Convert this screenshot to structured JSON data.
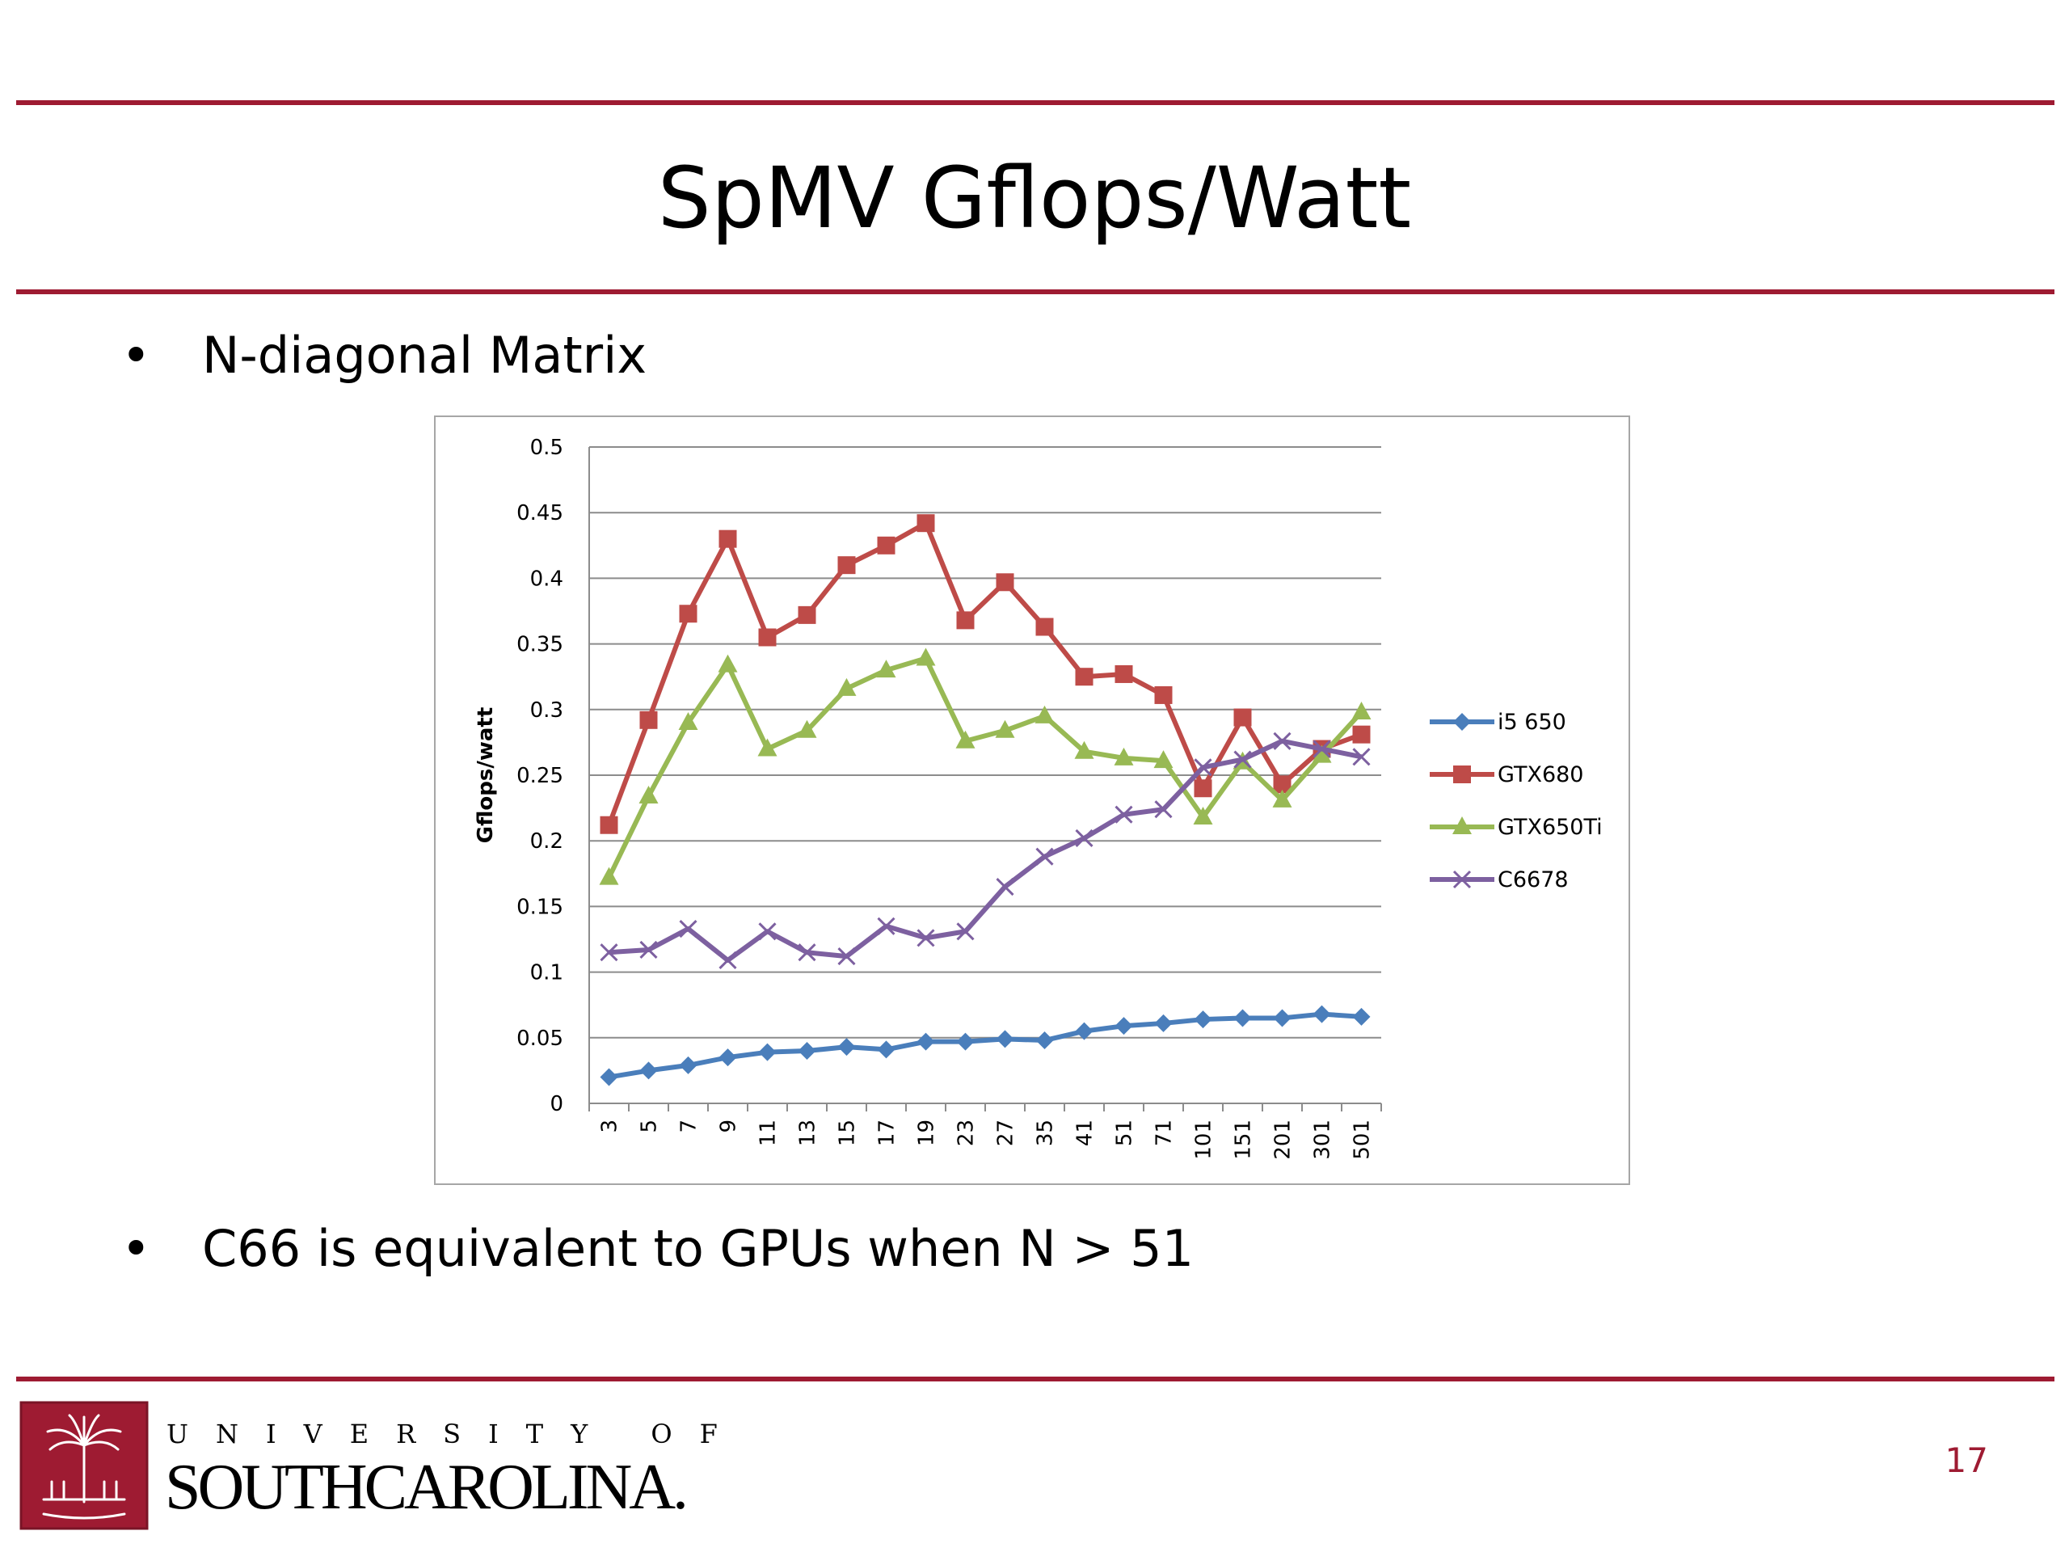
{
  "slide": {
    "title": "SpMV Gflops/Watt",
    "bullets": [
      "N-diagonal Matrix",
      "C66 is equivalent to GPUs when N > 51"
    ],
    "bullet_glyph": "•",
    "page_number": "17",
    "accent_color": "#9e1b32"
  },
  "logo": {
    "line1": "UNIVERSITY OF",
    "line2": "SOUTHCAROLINA."
  },
  "chart_data": {
    "type": "line",
    "title": "",
    "xlabel": "",
    "ylabel": "Gflops/watt",
    "categories": [
      "3",
      "5",
      "7",
      "9",
      "11",
      "13",
      "15",
      "17",
      "19",
      "23",
      "27",
      "35",
      "41",
      "51",
      "71",
      "101",
      "151",
      "201",
      "301",
      "501"
    ],
    "ylim": [
      0,
      0.5
    ],
    "yticks": [
      0,
      0.05,
      0.1,
      0.15,
      0.2,
      0.25,
      0.3,
      0.35,
      0.4,
      0.45,
      0.5
    ],
    "ytick_labels": [
      "0",
      "0.05",
      "0.1",
      "0.15",
      "0.2",
      "0.25",
      "0.3",
      "0.35",
      "0.4",
      "0.45",
      "0.5"
    ],
    "grid": true,
    "legend_position": "right",
    "series": [
      {
        "name": "i5 650",
        "color": "#4a7ebb",
        "marker": "diamond",
        "values": [
          0.02,
          0.025,
          0.029,
          0.035,
          0.039,
          0.04,
          0.043,
          0.041,
          0.047,
          0.047,
          0.049,
          0.048,
          0.055,
          0.059,
          0.061,
          0.064,
          0.065,
          0.065,
          0.068,
          0.066
        ]
      },
      {
        "name": "GTX680",
        "color": "#be4b48",
        "marker": "square",
        "values": [
          0.212,
          0.292,
          0.373,
          0.43,
          0.355,
          0.372,
          0.41,
          0.425,
          0.442,
          0.368,
          0.397,
          0.363,
          0.325,
          0.327,
          0.311,
          0.24,
          0.294,
          0.243,
          0.27,
          0.281
        ]
      },
      {
        "name": "GTX650Ti",
        "color": "#98b954",
        "marker": "triangle",
        "values": [
          0.172,
          0.234,
          0.29,
          0.334,
          0.27,
          0.284,
          0.316,
          0.33,
          0.339,
          0.276,
          0.284,
          0.295,
          0.268,
          0.263,
          0.261,
          0.218,
          0.26,
          0.231,
          0.265,
          0.298
        ]
      },
      {
        "name": "C6678",
        "color": "#7d60a0",
        "marker": "x",
        "values": [
          0.115,
          0.117,
          0.133,
          0.109,
          0.131,
          0.115,
          0.112,
          0.135,
          0.126,
          0.131,
          0.165,
          0.188,
          0.202,
          0.22,
          0.224,
          0.256,
          0.262,
          0.276,
          0.27,
          0.264
        ]
      }
    ]
  }
}
